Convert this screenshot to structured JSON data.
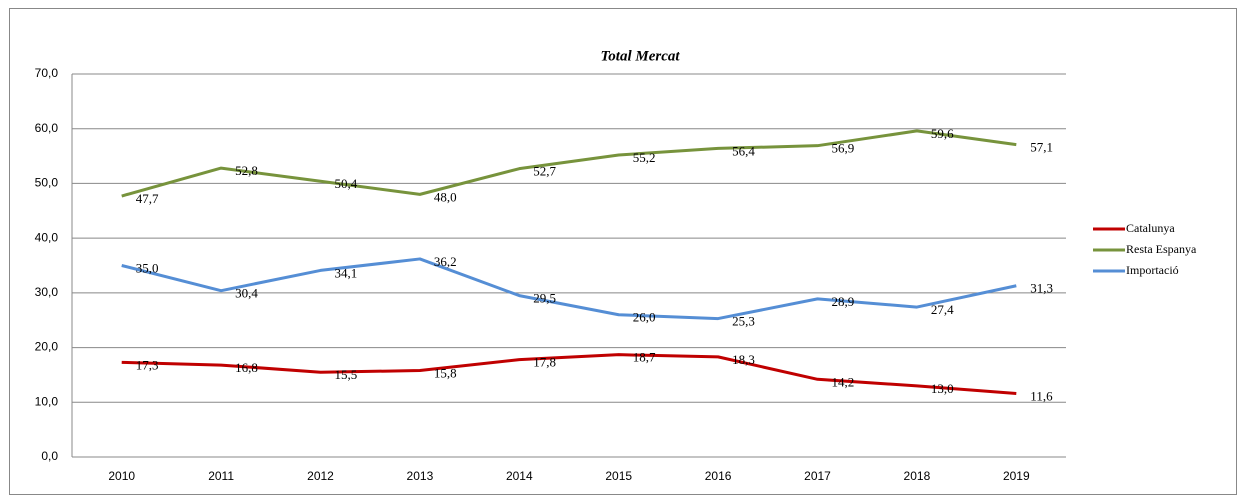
{
  "chart_data": {
    "type": "line",
    "title": "Total Mercat",
    "categories": [
      "2010",
      "2011",
      "2012",
      "2013",
      "2014",
      "2015",
      "2016",
      "2017",
      "2018",
      "2019"
    ],
    "series": [
      {
        "name": "Catalunya",
        "color": "#c00000",
        "values": [
          17.3,
          16.8,
          15.5,
          15.8,
          17.8,
          18.7,
          18.3,
          14.2,
          13.0,
          11.6
        ],
        "value_labels": [
          "17,3",
          "16,8",
          "15,5",
          "15,8",
          "17,8",
          "18,7",
          "18,3",
          "14,2",
          "13,0",
          "11,6"
        ]
      },
      {
        "name": "Resta Espanya",
        "color": "#77933c",
        "values": [
          47.7,
          52.8,
          50.4,
          48.0,
          52.7,
          55.2,
          56.4,
          56.9,
          59.6,
          57.1
        ],
        "value_labels": [
          "47,7",
          "52,8",
          "50,4",
          "48,0",
          "52,7",
          "55,2",
          "56,4",
          "56,9",
          "59,6",
          "57,1"
        ]
      },
      {
        "name": "Importació",
        "color": "#558ed5",
        "values": [
          35.0,
          30.4,
          34.1,
          36.2,
          29.5,
          26.0,
          25.3,
          28.9,
          27.4,
          31.3
        ],
        "value_labels": [
          "35,0",
          "30,4",
          "34,1",
          "36,2",
          "29,5",
          "26,0",
          "25,3",
          "28,9",
          "27,4",
          "31,3"
        ]
      }
    ],
    "ylim": [
      0,
      70
    ],
    "yticks": [
      {
        "value": 0,
        "label": "0,0"
      },
      {
        "value": 10,
        "label": "10,0"
      },
      {
        "value": 20,
        "label": "20,0"
      },
      {
        "value": 30,
        "label": "30,0"
      },
      {
        "value": 40,
        "label": "40,0"
      },
      {
        "value": 50,
        "label": "50,0"
      },
      {
        "value": 60,
        "label": "60,0"
      },
      {
        "value": 70,
        "label": "70,0"
      }
    ],
    "grid": true,
    "legend": "right"
  }
}
